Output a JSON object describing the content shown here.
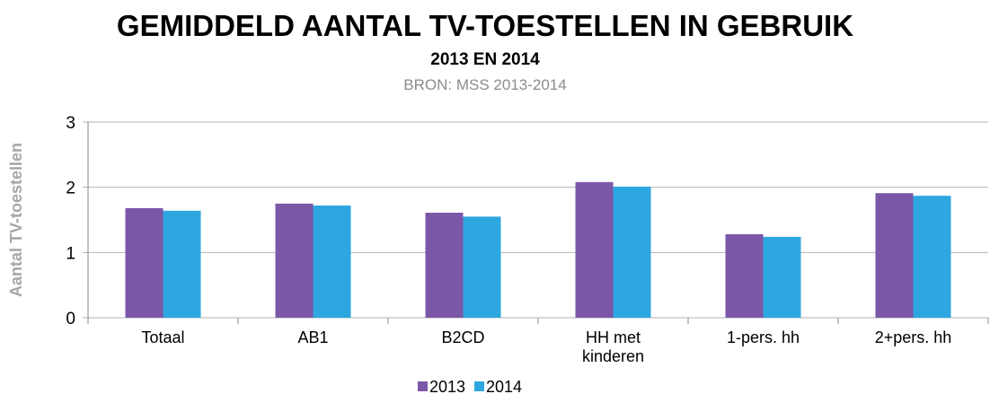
{
  "chart_data": {
    "type": "bar",
    "title": "GEMIDDELD AANTAL TV-TOESTELLEN IN GEBRUIK",
    "subtitle": "2013 EN 2014",
    "source": "BRON: MSS 2013-2014",
    "y_label": "Aantal TV-toestellen",
    "categories": [
      "Totaal",
      "AB1",
      "B2CD",
      "HH met kinderen",
      "1-pers. hh",
      "2+pers. hh"
    ],
    "series": [
      {
        "name": "2013",
        "color": "#7b57a8",
        "values": [
          1.68,
          1.75,
          1.61,
          2.08,
          1.28,
          1.91
        ]
      },
      {
        "name": "2014",
        "color": "#2ea7e0",
        "values": [
          1.64,
          1.72,
          1.55,
          2.01,
          1.24,
          1.87
        ]
      }
    ],
    "ylim": [
      0,
      3
    ],
    "yticks": [
      0,
      1,
      2,
      3
    ],
    "grid": true,
    "legend": "bottom"
  }
}
